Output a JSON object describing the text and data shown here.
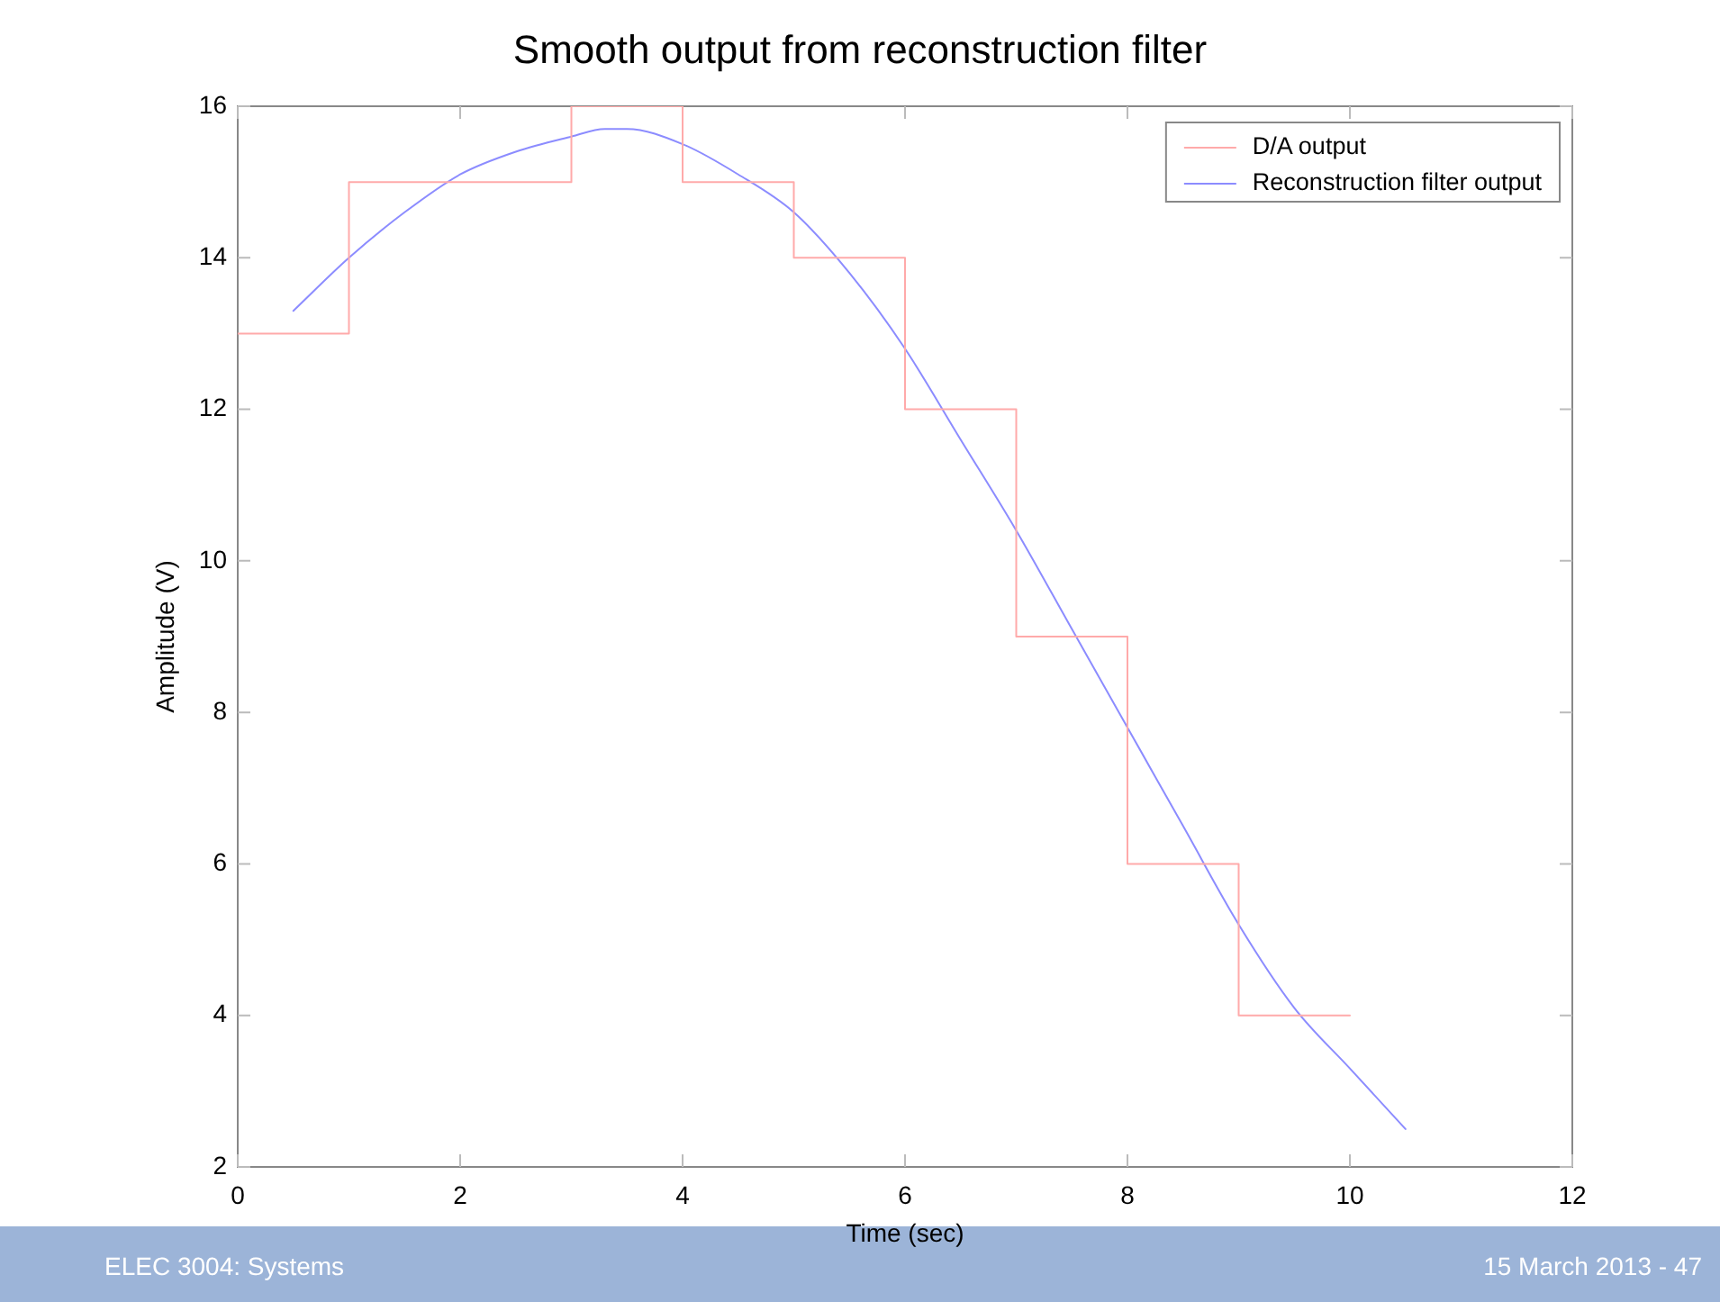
{
  "chart_data": {
    "type": "line",
    "title": "Smooth output from reconstruction filter",
    "xlabel": "Time (sec)",
    "ylabel": "Amplitude (V)",
    "series": [
      {
        "name": "D/A output",
        "type": "step",
        "color": "#ffaaaa",
        "x": [
          0,
          1,
          2,
          3,
          4,
          5,
          6,
          7,
          8,
          9,
          10
        ],
        "values": [
          13,
          15,
          15,
          16,
          15,
          14,
          12,
          9,
          6,
          4,
          4
        ]
      },
      {
        "name": "Reconstruction filter output",
        "color": "#8c8cff",
        "x": [
          0.5,
          1,
          1.5,
          2,
          2.5,
          3,
          3.3,
          3.5,
          4,
          4.5,
          5,
          5.5,
          6,
          6.5,
          7,
          7.5,
          8,
          8.5,
          9,
          9.5,
          10,
          10.5
        ],
        "values": [
          13.3,
          14.0,
          14.6,
          15.1,
          15.4,
          15.6,
          15.7,
          15.7,
          15.5,
          15.1,
          14.6,
          13.8,
          12.8,
          11.6,
          10.4,
          9.1,
          7.8,
          6.5,
          5.2,
          4.1,
          3.3,
          2.5
        ]
      }
    ],
    "xlim": [
      0,
      12
    ],
    "xticks": [
      0,
      2,
      4,
      6,
      8,
      10,
      12
    ],
    "ylim": [
      2,
      16
    ],
    "yticks": [
      2,
      4,
      6,
      8,
      10,
      12,
      14,
      16
    ],
    "legend": "top right",
    "marker": "none",
    "line_style": "solid",
    "annotations": [
      "ELEC 3004: Systems",
      "15 March 2013 - 47"
    ]
  }
}
